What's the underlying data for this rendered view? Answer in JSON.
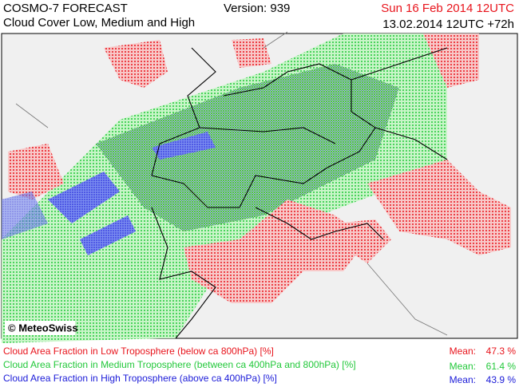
{
  "header": {
    "model": "COSMO-7 FORECAST",
    "subtitle": "Cloud Cover Low, Medium and High",
    "version": "Version: 939",
    "valid_time": "Sun 16 Feb 2014 12UTC",
    "run_time": "13.02.2014 12UTC +72h"
  },
  "map": {
    "copyright": "© MeteoSwiss"
  },
  "legend": [
    {
      "label": "Cloud Area Fraction in Low Troposphere (below ca 800hPa) [%]",
      "mean_label": "Mean:",
      "mean": "47.3 %",
      "color": "#e8141c"
    },
    {
      "label": "Cloud Area Fraction in Medium Troposphere (between ca 400hPa and 800hPa) [%]",
      "mean_label": "Mean:",
      "mean": "61.4 %",
      "color": "#22c83a"
    },
    {
      "label": "Cloud Area Fraction in High Troposphere (above ca 400hPa) [%]",
      "mean_label": "Mean:",
      "mean": "43.9 %",
      "color": "#1a1ad8"
    }
  ]
}
